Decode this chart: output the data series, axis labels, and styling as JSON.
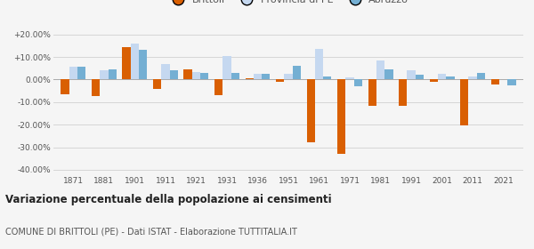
{
  "years": [
    1871,
    1881,
    1901,
    1911,
    1921,
    1931,
    1936,
    1951,
    1961,
    1971,
    1981,
    1991,
    2001,
    2011,
    2021
  ],
  "brittoli": [
    -6.5,
    -7.5,
    14.5,
    -4.0,
    4.5,
    -7.0,
    0.5,
    -1.0,
    -28.0,
    -33.0,
    -11.5,
    -11.5,
    -1.0,
    -20.5,
    -2.0
  ],
  "provincia_pe": [
    5.5,
    4.0,
    16.0,
    7.0,
    3.5,
    10.5,
    2.5,
    2.5,
    13.5,
    1.0,
    8.5,
    4.0,
    2.5,
    1.5,
    0.0
  ],
  "abruzzo": [
    5.5,
    4.5,
    13.0,
    4.0,
    3.0,
    3.0,
    2.5,
    6.0,
    1.5,
    -3.0,
    4.5,
    2.0,
    1.5,
    3.0,
    -2.5
  ],
  "color_brittoli": "#d95f02",
  "color_provincia": "#c5d8f0",
  "color_abruzzo": "#74afd3",
  "bg_color": "#f5f5f5",
  "title": "Variazione percentuale della popolazione ai censimenti",
  "subtitle": "COMUNE DI BRITTOLI (PE) - Dati ISTAT - Elaborazione TUTTITALIA.IT",
  "ylim": [
    -42,
    22
  ],
  "yticks": [
    -40,
    -30,
    -20,
    -10,
    0,
    10,
    20
  ],
  "ytick_labels": [
    "-40.00%",
    "-30.00%",
    "-20.00%",
    "-10.00%",
    "0.00%",
    "+10.00%",
    "+20.00%"
  ]
}
